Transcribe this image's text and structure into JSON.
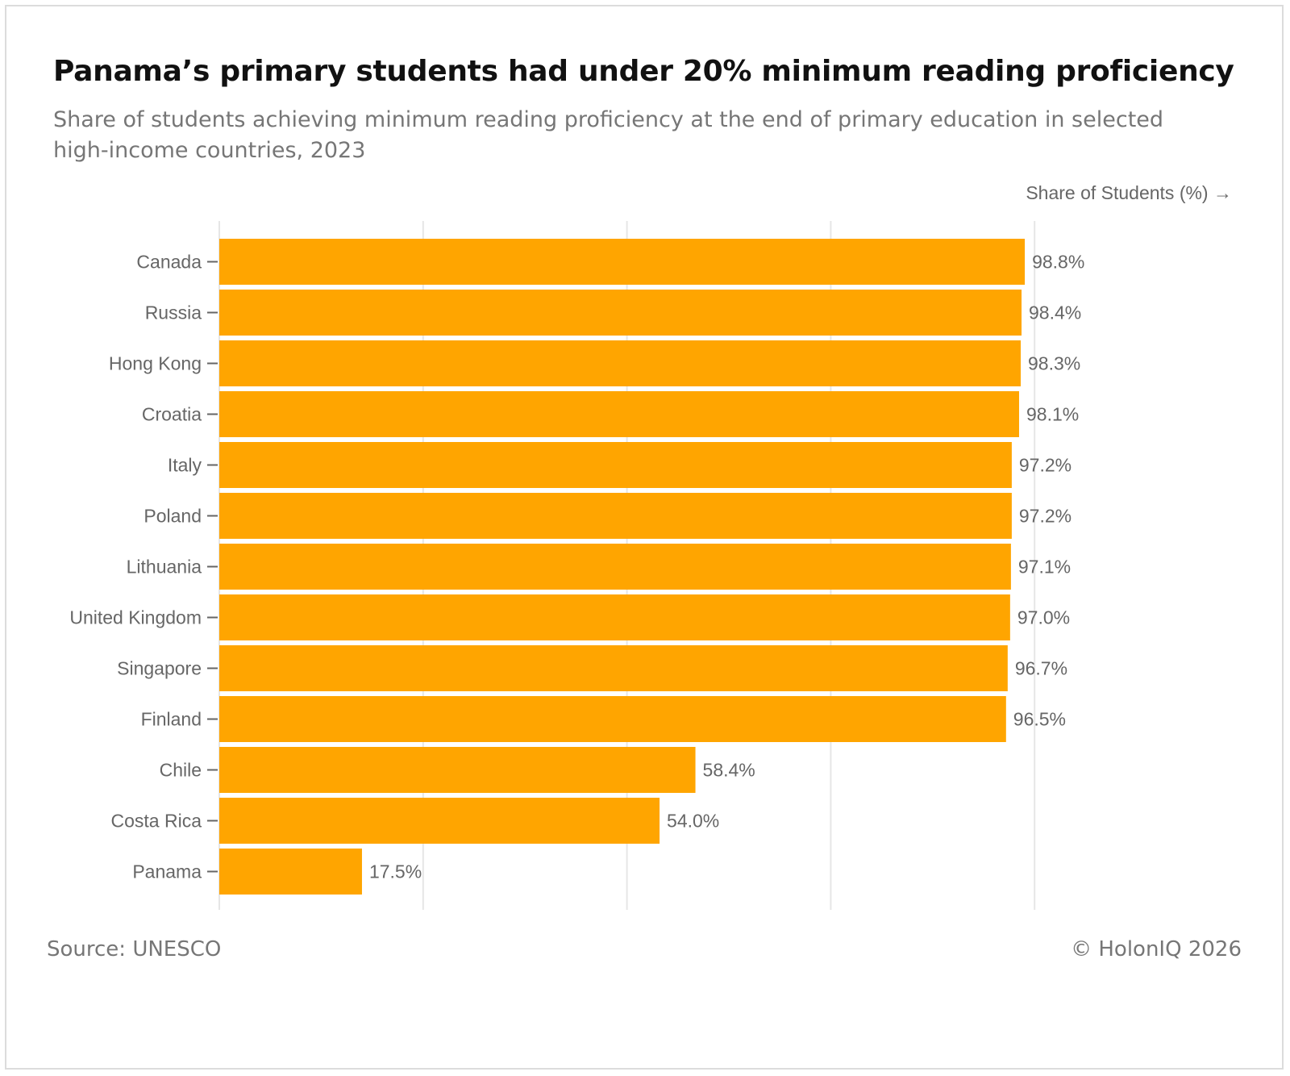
{
  "title": "Panama’s primary students had under 20% minimum reading proficiency",
  "subtitle": "Share of students achieving minimum reading proficiency at the end of primary education in selected high-income countries, 2023",
  "source": "Source: UNESCO",
  "copyright": "© HolonIQ 2026",
  "colors": {
    "bar": "#FFA500",
    "grid": "#e6e6e6",
    "tick": "#666666",
    "label": "#666666"
  },
  "chart_data": {
    "type": "bar",
    "orientation": "horizontal",
    "title": "Panama’s primary students had under 20% minimum reading proficiency",
    "xlabel": "Share of Students (%) →",
    "ylabel": "",
    "xlim": [
      0,
      125
    ],
    "grid": true,
    "categories": [
      "Canada",
      "Russia",
      "Hong Kong",
      "Croatia",
      "Italy",
      "Poland",
      "Lithuania",
      "United Kingdom",
      "Singapore",
      "Finland",
      "Chile",
      "Costa Rica",
      "Panama"
    ],
    "values": [
      98.8,
      98.4,
      98.3,
      98.1,
      97.2,
      97.2,
      97.1,
      97.0,
      96.7,
      96.5,
      58.4,
      54.0,
      17.5
    ],
    "data_labels": [
      "98.8%",
      "98.4%",
      "98.3%",
      "98.1%",
      "97.2%",
      "97.2%",
      "97.1%",
      "97.0%",
      "96.7%",
      "96.5%",
      "58.4%",
      "54.0%",
      "17.5%"
    ]
  }
}
